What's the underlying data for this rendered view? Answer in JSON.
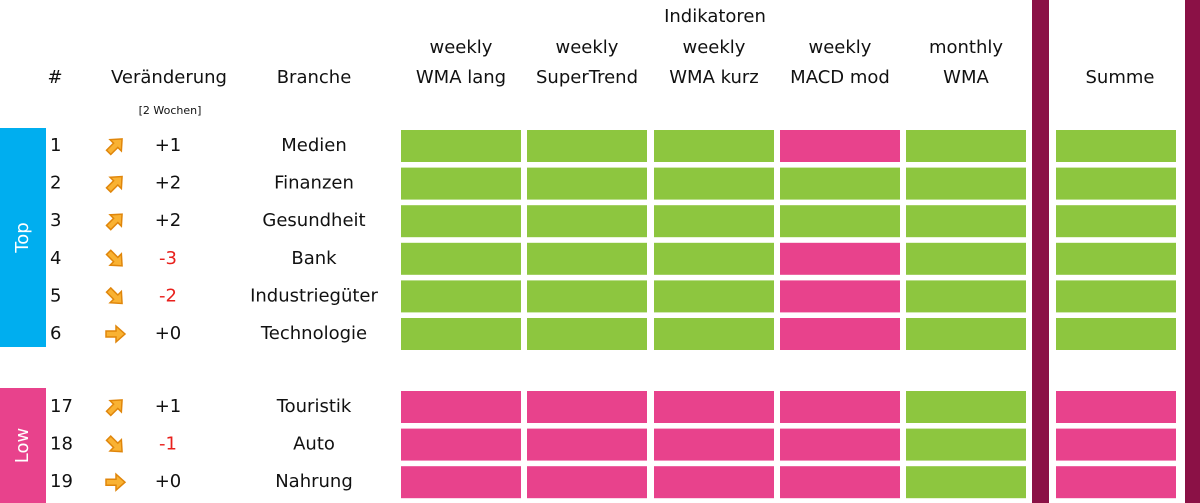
{
  "header": {
    "group": "Indikatoren",
    "columns": [
      [
        "weekly",
        "WMA lang"
      ],
      [
        "weekly",
        "SuperTrend"
      ],
      [
        "weekly",
        "WMA kurz"
      ],
      [
        "weekly",
        "MACD mod"
      ],
      [
        "monthly",
        "WMA"
      ]
    ],
    "rank": "#",
    "change": "Veränderung",
    "change_note": "[2 Wochen]",
    "branch": "Branche",
    "sum": "Summe"
  },
  "colors": {
    "up": "#8dc63f",
    "down": "#e8428c",
    "divider": "#8b1146",
    "negative": "#e8201c"
  },
  "groups": [
    {
      "label": "Top",
      "color": "#00aeef",
      "rows": [
        {
          "rank": 1,
          "change": "+1",
          "branch": "Medien",
          "cells": [
            "#8dc63f",
            "#8dc63f",
            "#8dc63f",
            "#e8428c",
            "#8dc63f",
            "#8dc63f"
          ]
        },
        {
          "rank": 2,
          "change": "+2",
          "branch": "Finanzen",
          "cells": [
            "#8dc63f",
            "#8dc63f",
            "#8dc63f",
            "#8dc63f",
            "#8dc63f",
            "#8dc63f"
          ]
        },
        {
          "rank": 3,
          "change": "+2",
          "branch": "Gesundheit",
          "cells": [
            "#8dc63f",
            "#8dc63f",
            "#8dc63f",
            "#8dc63f",
            "#8dc63f",
            "#8dc63f"
          ]
        },
        {
          "rank": 4,
          "change": "-3",
          "branch": "Bank",
          "cells": [
            "#8dc63f",
            "#8dc63f",
            "#8dc63f",
            "#e8428c",
            "#8dc63f",
            "#8dc63f"
          ]
        },
        {
          "rank": 5,
          "change": "-2",
          "branch": "Industriegüter",
          "cells": [
            "#8dc63f",
            "#8dc63f",
            "#8dc63f",
            "#e8428c",
            "#8dc63f",
            "#8dc63f"
          ]
        },
        {
          "rank": 6,
          "change": "+0",
          "branch": "Technologie",
          "cells": [
            "#8dc63f",
            "#8dc63f",
            "#8dc63f",
            "#e8428c",
            "#8dc63f",
            "#8dc63f"
          ]
        }
      ]
    },
    {
      "label": "Low",
      "color": "#e8428c",
      "rows": [
        {
          "rank": 17,
          "change": "+1",
          "branch": "Touristik",
          "cells": [
            "#e8428c",
            "#e8428c",
            "#e8428c",
            "#e8428c",
            "#8dc63f",
            "#e8428c"
          ]
        },
        {
          "rank": 18,
          "change": "-1",
          "branch": "Auto",
          "cells": [
            "#e8428c",
            "#e8428c",
            "#e8428c",
            "#e8428c",
            "#8dc63f",
            "#e8428c"
          ]
        },
        {
          "rank": 19,
          "change": "+0",
          "branch": "Nahrung",
          "cells": [
            "#e8428c",
            "#e8428c",
            "#e8428c",
            "#e8428c",
            "#8dc63f",
            "#e8428c"
          ]
        }
      ]
    }
  ]
}
